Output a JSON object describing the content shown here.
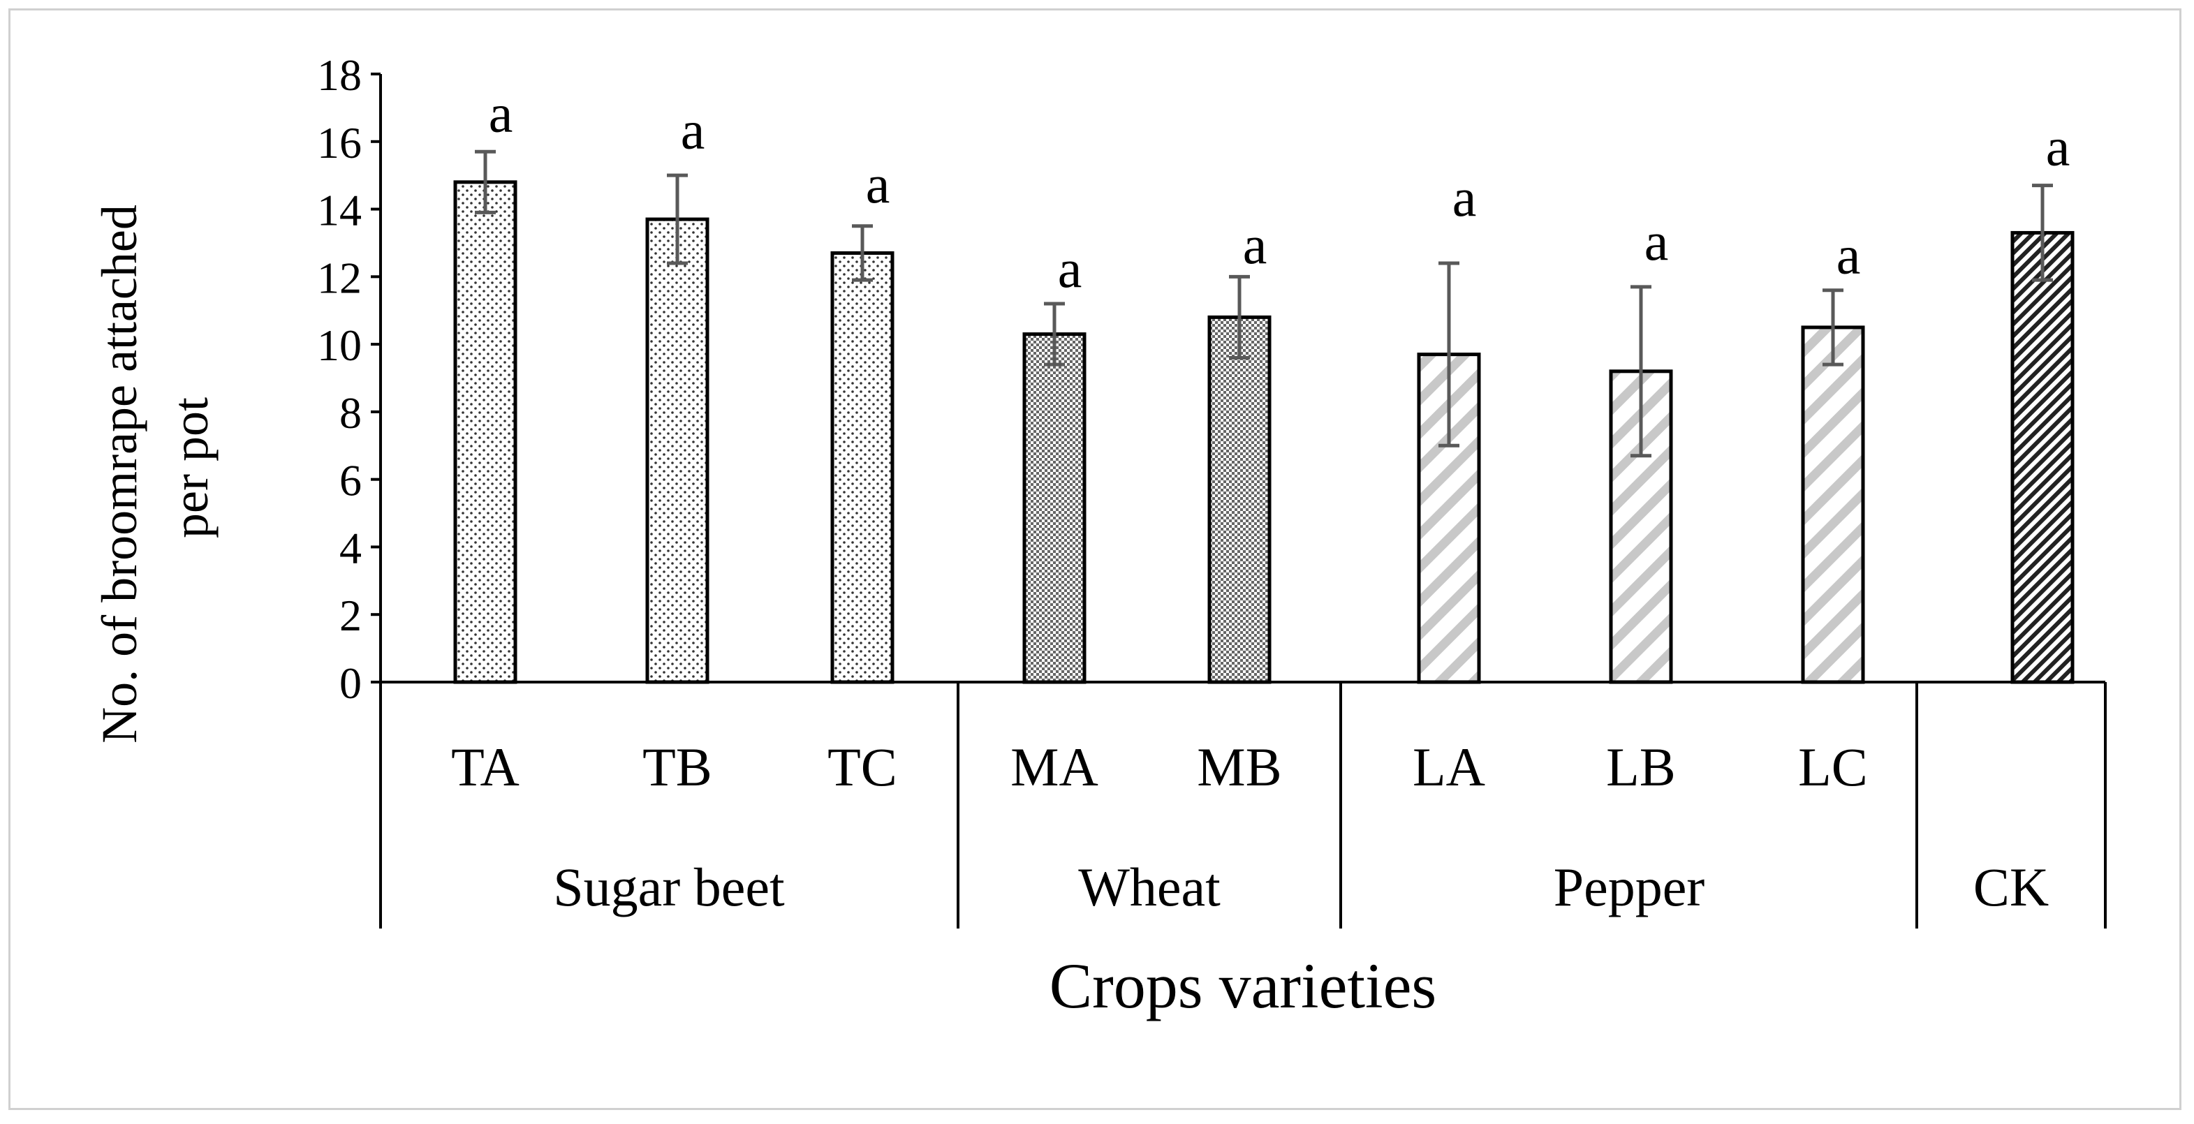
{
  "chart_data": {
    "type": "bar",
    "title": "",
    "xlabel": "Crops varieties",
    "ylabel_lines": [
      "No. of broomrape attached",
      "per pot"
    ],
    "ylim": [
      0,
      18
    ],
    "yticks": [
      0,
      2,
      4,
      6,
      8,
      10,
      12,
      14,
      16,
      18
    ],
    "grid": false,
    "categories": [
      "TA",
      "TB",
      "TC",
      "MA",
      "MB",
      "LA",
      "LB",
      "LC",
      "CK"
    ],
    "values": [
      14.8,
      13.7,
      12.7,
      10.3,
      10.8,
      9.7,
      9.2,
      10.5,
      13.3
    ],
    "errors": [
      0.9,
      1.3,
      0.8,
      0.9,
      1.2,
      2.7,
      2.5,
      1.1,
      1.4
    ],
    "significance_labels": [
      "a",
      "a",
      "a",
      "a",
      "a",
      "a",
      "a",
      "a",
      "a"
    ],
    "category_labels": [
      "TA",
      "TB",
      "TC",
      "MA",
      "MB",
      "LA",
      "LB",
      "LC",
      ""
    ],
    "groups": [
      {
        "name": "Sugar beet",
        "members": [
          "TA",
          "TB",
          "TC"
        ],
        "pattern": "dots"
      },
      {
        "name": "Wheat",
        "members": [
          "MA",
          "MB"
        ],
        "pattern": "checker"
      },
      {
        "name": "Pepper",
        "members": [
          "LA",
          "LB",
          "LC"
        ],
        "pattern": "wide-diagonal"
      },
      {
        "name": "CK",
        "members": [
          "CK"
        ],
        "pattern": "dense-diagonal"
      }
    ],
    "colors": {
      "bar_outline": "#000000",
      "error_bar": "#595959",
      "axis": "#000000",
      "hatch_light": "#c8c8c8"
    }
  }
}
